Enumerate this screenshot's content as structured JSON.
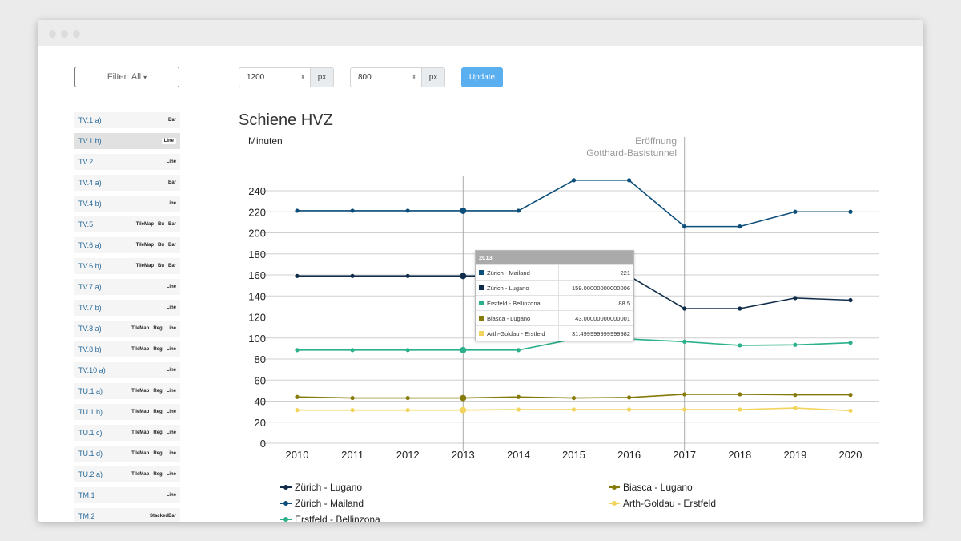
{
  "toolbar": {
    "filter_label": "Filter: All",
    "width_value": "1200",
    "height_value": "800",
    "unit": "px",
    "update_label": "Update"
  },
  "sidebar": {
    "items": [
      {
        "label": "TV.1 a)",
        "tags": [
          "Bar"
        ]
      },
      {
        "label": "TV.1 b)",
        "tags": [
          "Line"
        ],
        "active": true
      },
      {
        "label": "TV.2",
        "tags": [
          "Line"
        ]
      },
      {
        "label": "TV.4 a)",
        "tags": [
          "Bar"
        ]
      },
      {
        "label": "TV.4 b)",
        "tags": [
          "Line"
        ]
      },
      {
        "label": "TV.5",
        "tags": [
          "TileMap",
          "Bu",
          "Bar"
        ]
      },
      {
        "label": "TV.6 a)",
        "tags": [
          "TileMap",
          "Bu",
          "Bar"
        ]
      },
      {
        "label": "TV.6 b)",
        "tags": [
          "TileMap",
          "Bu",
          "Bar"
        ]
      },
      {
        "label": "TV.7 a)",
        "tags": [
          "Line"
        ]
      },
      {
        "label": "TV.7 b)",
        "tags": [
          "Line"
        ]
      },
      {
        "label": "TV.8 a)",
        "tags": [
          "TileMap",
          "Reg",
          "Line"
        ]
      },
      {
        "label": "TV.8 b)",
        "tags": [
          "TileMap",
          "Reg",
          "Line"
        ]
      },
      {
        "label": "TV.10 a)",
        "tags": [
          "Line"
        ]
      },
      {
        "label": "TU.1 a)",
        "tags": [
          "TileMap",
          "Reg",
          "Line"
        ]
      },
      {
        "label": "TU.1 b)",
        "tags": [
          "TileMap",
          "Reg",
          "Line"
        ]
      },
      {
        "label": "TU.1 c)",
        "tags": [
          "TileMap",
          "Reg",
          "Line"
        ]
      },
      {
        "label": "TU.1 d)",
        "tags": [
          "TileMap",
          "Reg",
          "Line"
        ]
      },
      {
        "label": "TU.2 a)",
        "tags": [
          "TileMap",
          "Reg",
          "Line"
        ]
      },
      {
        "label": "TM.1",
        "tags": [
          "Line"
        ]
      },
      {
        "label": "TM.2",
        "tags": [
          "StackedBar"
        ]
      }
    ]
  },
  "chart_data": {
    "type": "line",
    "title": "Schiene HVZ",
    "ylabel": "Minuten",
    "xlabel": "",
    "x": [
      2010,
      2011,
      2012,
      2013,
      2014,
      2015,
      2016,
      2017,
      2018,
      2019,
      2020
    ],
    "ylim": [
      0,
      250
    ],
    "yticks": [
      0,
      20,
      40,
      60,
      80,
      100,
      120,
      140,
      160,
      180,
      200,
      220,
      240
    ],
    "grid": true,
    "legend_position": "bottom",
    "series": [
      {
        "name": "Zürich - Lugano",
        "color": "#0f2d4a",
        "values": [
          159,
          159,
          159,
          159,
          159,
          159,
          159,
          128,
          128,
          138,
          136
        ]
      },
      {
        "name": "Zürich - Mailand",
        "color": "#0c4e7a",
        "values": [
          221,
          221,
          221,
          221,
          221,
          250,
          250,
          206,
          206,
          220,
          220
        ]
      },
      {
        "name": "Erstfeld - Bellinzona",
        "color": "#2ab08a",
        "values": [
          88.5,
          88.5,
          88.5,
          88.5,
          88.5,
          99,
          99,
          96.5,
          93,
          93.5,
          95.5
        ]
      },
      {
        "name": "Biasca - Lugano",
        "color": "#857a0a",
        "values": [
          44,
          43,
          43,
          43,
          44,
          43,
          43.5,
          46.5,
          46.5,
          46,
          46
        ]
      },
      {
        "name": "Arth-Goldau - Erstfeld",
        "color": "#f2d45c",
        "values": [
          31.5,
          31.5,
          31.5,
          31.5,
          32,
          32,
          32,
          32,
          32,
          33.5,
          31
        ]
      }
    ],
    "annotations": [
      {
        "x": 2017,
        "text": [
          "Eröffnung",
          "Gotthard-Basistunnel"
        ]
      }
    ],
    "hover_x": 2013
  },
  "tooltip": {
    "title": "2013",
    "rows": [
      {
        "name": "Zürich - Mailand",
        "value": "221",
        "color": "#0c4e7a"
      },
      {
        "name": "Zürich - Lugano",
        "value": "159.00000000000006",
        "color": "#0f2d4a"
      },
      {
        "name": "Erstfeld - Bellinzona",
        "value": "88.5",
        "color": "#2ab08a"
      },
      {
        "name": "Biasca - Lugano",
        "value": "43.00000000000001",
        "color": "#857a0a"
      },
      {
        "name": "Arth-Goldau - Erstfeld",
        "value": "31.499999999999982",
        "color": "#f2d45c"
      }
    ]
  }
}
